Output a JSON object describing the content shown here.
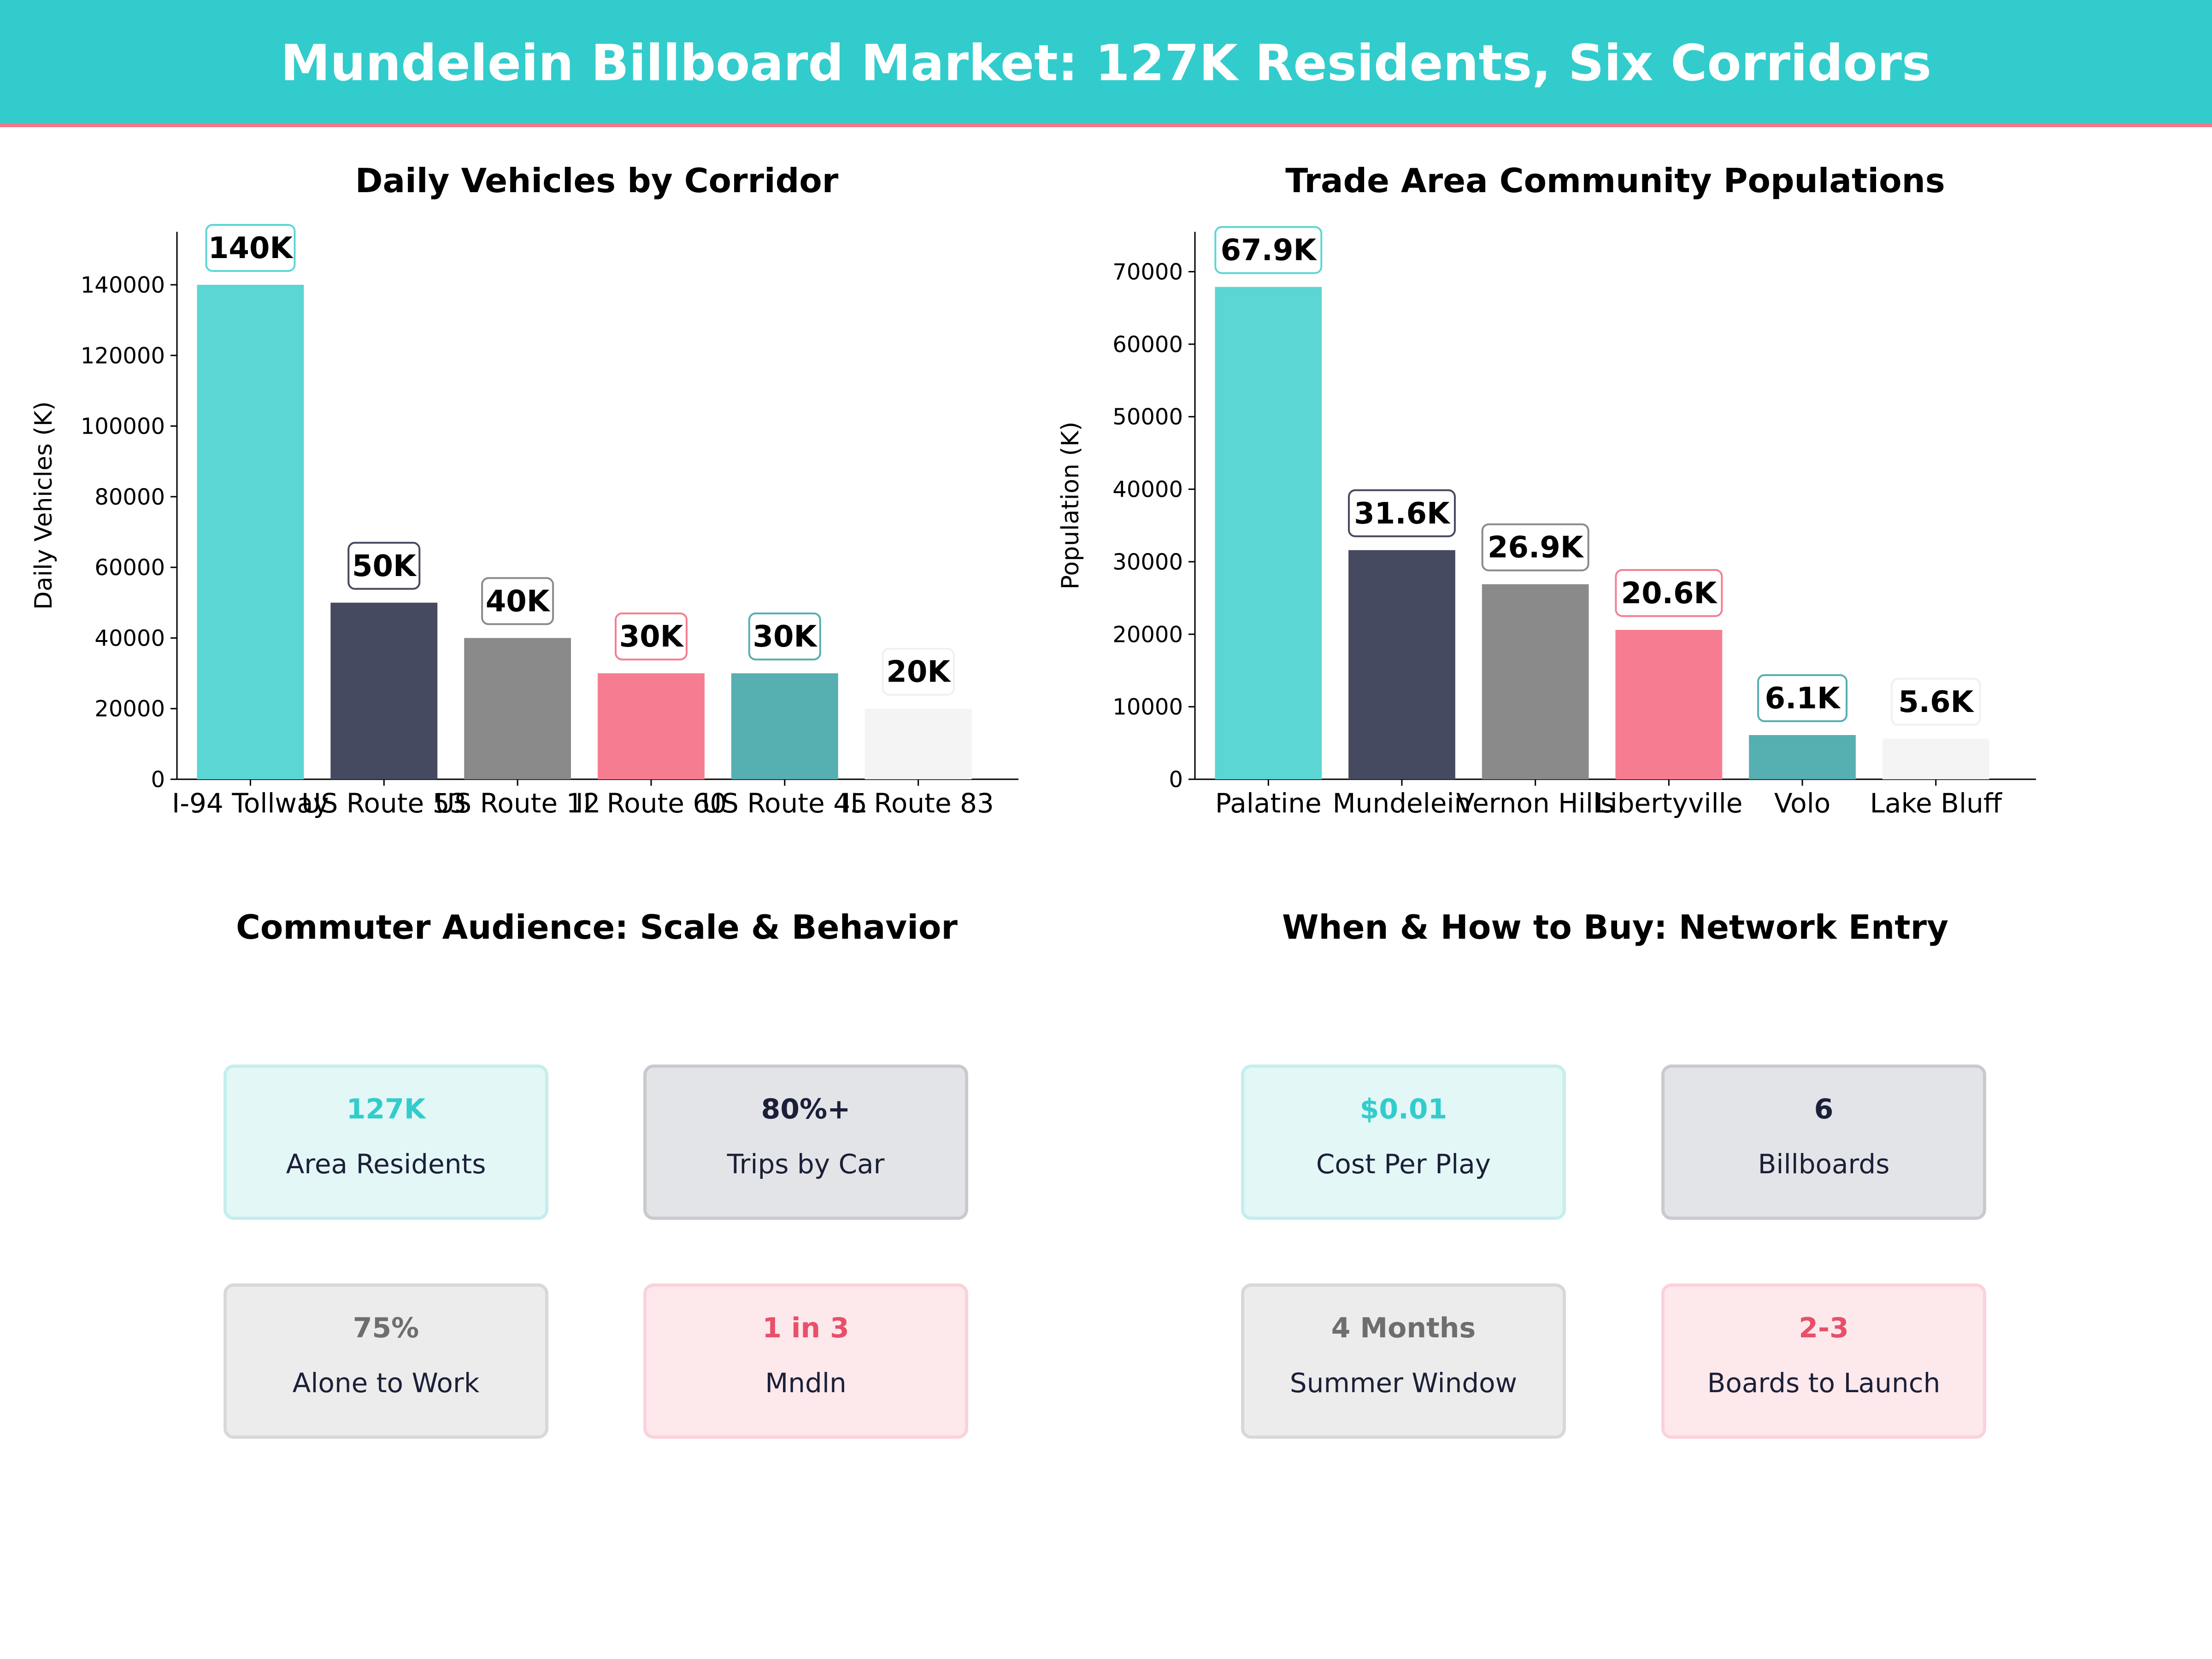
{
  "header": {
    "title": "Mundelein Billboard Market: 127K Residents, Six Corridors"
  },
  "colors": {
    "header_bg": "#33cccc",
    "header_rule": "#f07888",
    "teal": "#5bd6d4",
    "navy": "#464a60",
    "gray": "#8a8a8a",
    "pink": "#f67d91",
    "dark_teal": "#56afb0",
    "light": "#f4f4f4"
  },
  "chart_data": [
    {
      "type": "bar",
      "title": "Daily Vehicles by Corridor",
      "xlabel": "",
      "ylabel": "Daily Vehicles (K)",
      "categories": [
        "I-94 Tollway",
        "US Route 53",
        "US Route 12",
        "IL Route 60",
        "US Route 45",
        "IL Route 83"
      ],
      "values": [
        140000,
        50000,
        40000,
        30000,
        30000,
        20000
      ],
      "data_labels": [
        "140K",
        "50K",
        "40K",
        "30K",
        "30K",
        "20K"
      ],
      "yticks": [
        0,
        20000,
        40000,
        60000,
        80000,
        100000,
        120000,
        140000
      ],
      "ylim": [
        0,
        155000
      ],
      "bar_colors": [
        "#5bd6d4",
        "#464a60",
        "#8a8a8a",
        "#f67d91",
        "#56afb0",
        "#f4f4f4"
      ],
      "label_borders": [
        "#5bd6d4",
        "#464a60",
        "#8a8a8a",
        "#f67d91",
        "#56afb0",
        "#f0f0f0"
      ],
      "grid": false
    },
    {
      "type": "bar",
      "title": "Trade Area Community Populations",
      "xlabel": "",
      "ylabel": "Population (K)",
      "categories": [
        "Palatine",
        "Mundelein",
        "Vernon Hills",
        "Libertyville",
        "Volo",
        "Lake Bluff"
      ],
      "values": [
        67900,
        31600,
        26900,
        20600,
        6100,
        5600
      ],
      "data_labels": [
        "67.9K",
        "31.6K",
        "26.9K",
        "20.6K",
        "6.1K",
        "5.6K"
      ],
      "yticks": [
        0,
        10000,
        20000,
        30000,
        40000,
        50000,
        60000,
        70000
      ],
      "ylim": [
        0,
        75500
      ],
      "bar_colors": [
        "#5bd6d4",
        "#464a60",
        "#8a8a8a",
        "#f67d91",
        "#56afb0",
        "#f4f4f4"
      ],
      "label_borders": [
        "#5bd6d4",
        "#464a60",
        "#8a8a8a",
        "#f67d91",
        "#56afb0",
        "#f0f0f0"
      ],
      "grid": false
    }
  ],
  "audience": {
    "title": "Commuter Audience: Scale & Behavior",
    "cards": [
      {
        "value": "127K",
        "label": "Area Residents",
        "color": "#33cccc",
        "bg": "#e3f7f7",
        "border": "#c5eeee"
      },
      {
        "value": "80%+",
        "label": "Trips by Car",
        "color": "#1b2038",
        "bg": "#e3e4e8",
        "border": "#c9cacf"
      },
      {
        "value": "75%",
        "label": "Alone to Work",
        "color": "#6e6e6e",
        "bg": "#ececec",
        "border": "#d8d8d8"
      },
      {
        "value": "1 in 3",
        "label": "Mndln",
        "color": "#e8506a",
        "bg": "#fde8ec",
        "border": "#fbd2da"
      }
    ]
  },
  "buying": {
    "title": "When & How to Buy: Network Entry",
    "cards": [
      {
        "value": "$0.01",
        "label": "Cost Per Play",
        "color": "#33cccc",
        "bg": "#e3f7f7",
        "border": "#c5eeee"
      },
      {
        "value": "6",
        "label": "Billboards",
        "color": "#1b2038",
        "bg": "#e3e4e8",
        "border": "#c9cacf"
      },
      {
        "value": "4 Months",
        "label": "Summer Window",
        "color": "#6e6e6e",
        "bg": "#ececec",
        "border": "#d8d8d8"
      },
      {
        "value": "2-3",
        "label": "Boards to Launch",
        "color": "#e8506a",
        "bg": "#fde8ec",
        "border": "#fbd2da"
      }
    ]
  }
}
